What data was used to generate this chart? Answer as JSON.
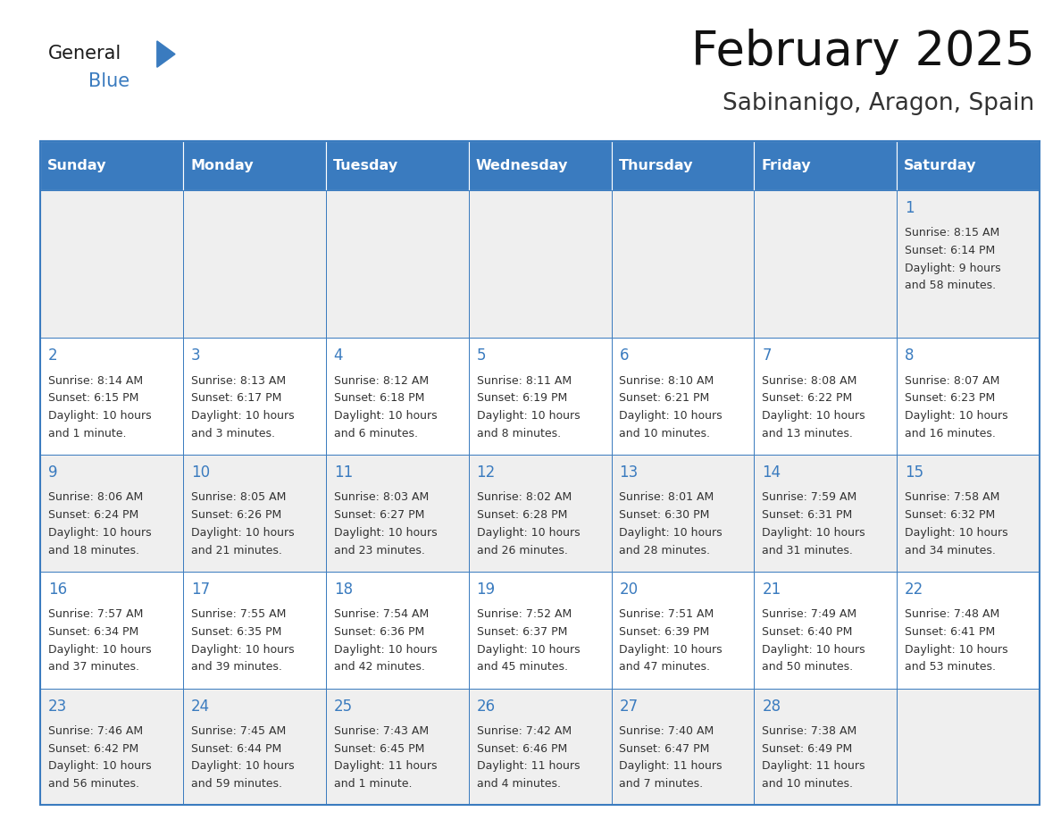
{
  "title": "February 2025",
  "subtitle": "Sabinanigo, Aragon, Spain",
  "header_bg": "#3a7bbf",
  "header_text": "#ffffff",
  "day_names": [
    "Sunday",
    "Monday",
    "Tuesday",
    "Wednesday",
    "Thursday",
    "Friday",
    "Saturday"
  ],
  "odd_row_bg": "#efefef",
  "even_row_bg": "#ffffff",
  "cell_border": "#3a7bbf",
  "text_color": "#333333",
  "day_num_color": "#3a7bbf",
  "logo_general_color": "#1a1a1a",
  "logo_blue_color": "#3a7bbf",
  "calendar_data": [
    [
      null,
      null,
      null,
      null,
      null,
      null,
      {
        "day": 1,
        "sunrise": "8:15 AM",
        "sunset": "6:14 PM",
        "daylight": "9 hours",
        "daylight2": "and 58 minutes."
      }
    ],
    [
      {
        "day": 2,
        "sunrise": "8:14 AM",
        "sunset": "6:15 PM",
        "daylight": "10 hours",
        "daylight2": "and 1 minute."
      },
      {
        "day": 3,
        "sunrise": "8:13 AM",
        "sunset": "6:17 PM",
        "daylight": "10 hours",
        "daylight2": "and 3 minutes."
      },
      {
        "day": 4,
        "sunrise": "8:12 AM",
        "sunset": "6:18 PM",
        "daylight": "10 hours",
        "daylight2": "and 6 minutes."
      },
      {
        "day": 5,
        "sunrise": "8:11 AM",
        "sunset": "6:19 PM",
        "daylight": "10 hours",
        "daylight2": "and 8 minutes."
      },
      {
        "day": 6,
        "sunrise": "8:10 AM",
        "sunset": "6:21 PM",
        "daylight": "10 hours",
        "daylight2": "and 10 minutes."
      },
      {
        "day": 7,
        "sunrise": "8:08 AM",
        "sunset": "6:22 PM",
        "daylight": "10 hours",
        "daylight2": "and 13 minutes."
      },
      {
        "day": 8,
        "sunrise": "8:07 AM",
        "sunset": "6:23 PM",
        "daylight": "10 hours",
        "daylight2": "and 16 minutes."
      }
    ],
    [
      {
        "day": 9,
        "sunrise": "8:06 AM",
        "sunset": "6:24 PM",
        "daylight": "10 hours",
        "daylight2": "and 18 minutes."
      },
      {
        "day": 10,
        "sunrise": "8:05 AM",
        "sunset": "6:26 PM",
        "daylight": "10 hours",
        "daylight2": "and 21 minutes."
      },
      {
        "day": 11,
        "sunrise": "8:03 AM",
        "sunset": "6:27 PM",
        "daylight": "10 hours",
        "daylight2": "and 23 minutes."
      },
      {
        "day": 12,
        "sunrise": "8:02 AM",
        "sunset": "6:28 PM",
        "daylight": "10 hours",
        "daylight2": "and 26 minutes."
      },
      {
        "day": 13,
        "sunrise": "8:01 AM",
        "sunset": "6:30 PM",
        "daylight": "10 hours",
        "daylight2": "and 28 minutes."
      },
      {
        "day": 14,
        "sunrise": "7:59 AM",
        "sunset": "6:31 PM",
        "daylight": "10 hours",
        "daylight2": "and 31 minutes."
      },
      {
        "day": 15,
        "sunrise": "7:58 AM",
        "sunset": "6:32 PM",
        "daylight": "10 hours",
        "daylight2": "and 34 minutes."
      }
    ],
    [
      {
        "day": 16,
        "sunrise": "7:57 AM",
        "sunset": "6:34 PM",
        "daylight": "10 hours",
        "daylight2": "and 37 minutes."
      },
      {
        "day": 17,
        "sunrise": "7:55 AM",
        "sunset": "6:35 PM",
        "daylight": "10 hours",
        "daylight2": "and 39 minutes."
      },
      {
        "day": 18,
        "sunrise": "7:54 AM",
        "sunset": "6:36 PM",
        "daylight": "10 hours",
        "daylight2": "and 42 minutes."
      },
      {
        "day": 19,
        "sunrise": "7:52 AM",
        "sunset": "6:37 PM",
        "daylight": "10 hours",
        "daylight2": "and 45 minutes."
      },
      {
        "day": 20,
        "sunrise": "7:51 AM",
        "sunset": "6:39 PM",
        "daylight": "10 hours",
        "daylight2": "and 47 minutes."
      },
      {
        "day": 21,
        "sunrise": "7:49 AM",
        "sunset": "6:40 PM",
        "daylight": "10 hours",
        "daylight2": "and 50 minutes."
      },
      {
        "day": 22,
        "sunrise": "7:48 AM",
        "sunset": "6:41 PM",
        "daylight": "10 hours",
        "daylight2": "and 53 minutes."
      }
    ],
    [
      {
        "day": 23,
        "sunrise": "7:46 AM",
        "sunset": "6:42 PM",
        "daylight": "10 hours",
        "daylight2": "and 56 minutes."
      },
      {
        "day": 24,
        "sunrise": "7:45 AM",
        "sunset": "6:44 PM",
        "daylight": "10 hours",
        "daylight2": "and 59 minutes."
      },
      {
        "day": 25,
        "sunrise": "7:43 AM",
        "sunset": "6:45 PM",
        "daylight": "11 hours",
        "daylight2": "and 1 minute."
      },
      {
        "day": 26,
        "sunrise": "7:42 AM",
        "sunset": "6:46 PM",
        "daylight": "11 hours",
        "daylight2": "and 4 minutes."
      },
      {
        "day": 27,
        "sunrise": "7:40 AM",
        "sunset": "6:47 PM",
        "daylight": "11 hours",
        "daylight2": "and 7 minutes."
      },
      {
        "day": 28,
        "sunrise": "7:38 AM",
        "sunset": "6:49 PM",
        "daylight": "11 hours",
        "daylight2": "and 10 minutes."
      },
      null
    ]
  ]
}
